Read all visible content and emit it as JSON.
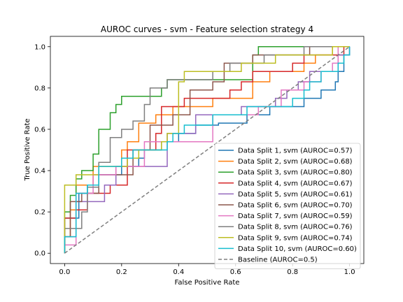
{
  "chart_data": {
    "type": "line",
    "title": "AUROC curves - svm - Feature selection strategy 4",
    "xlabel": "False Positive Rate",
    "ylabel": "True Positive Rate",
    "xlim": [
      -0.05,
      1.05
    ],
    "ylim": [
      -0.05,
      1.05
    ],
    "xticks": [
      0.0,
      0.2,
      0.4,
      0.6,
      0.8,
      1.0
    ],
    "yticks": [
      0.0,
      0.2,
      0.4,
      0.6,
      0.8,
      1.0
    ],
    "tick_labels_x": [
      "0.0",
      "0.2",
      "0.4",
      "0.6",
      "0.8",
      "1.0"
    ],
    "tick_labels_y": [
      "0.0",
      "0.2",
      "0.4",
      "0.6",
      "0.8",
      "1.0"
    ],
    "legend_position": "lower-right",
    "grid": false,
    "series": [
      {
        "name": "Data Split 1, svm (AUROC=0.57)",
        "color": "#1f77b4",
        "points": [
          [
            0,
            0
          ],
          [
            0,
            0.17
          ],
          [
            0.05,
            0.17
          ],
          [
            0.05,
            0.29
          ],
          [
            0.08,
            0.29
          ],
          [
            0.08,
            0.33
          ],
          [
            0.12,
            0.33
          ],
          [
            0.12,
            0.38
          ],
          [
            0.2,
            0.38
          ],
          [
            0.2,
            0.42
          ],
          [
            0.26,
            0.42
          ],
          [
            0.26,
            0.46
          ],
          [
            0.28,
            0.46
          ],
          [
            0.28,
            0.5
          ],
          [
            0.34,
            0.5
          ],
          [
            0.34,
            0.54
          ],
          [
            0.4,
            0.54
          ],
          [
            0.4,
            0.58
          ],
          [
            0.46,
            0.58
          ],
          [
            0.46,
            0.62
          ],
          [
            0.54,
            0.62
          ],
          [
            0.54,
            0.63
          ],
          [
            0.64,
            0.63
          ],
          [
            0.64,
            0.67
          ],
          [
            0.72,
            0.67
          ],
          [
            0.72,
            0.71
          ],
          [
            0.84,
            0.71
          ],
          [
            0.84,
            0.75
          ],
          [
            0.9,
            0.75
          ],
          [
            0.9,
            0.79
          ],
          [
            0.95,
            0.79
          ],
          [
            0.95,
            0.83
          ],
          [
            0.96,
            0.83
          ],
          [
            0.96,
            0.88
          ],
          [
            0.98,
            0.88
          ],
          [
            0.98,
            0.96
          ],
          [
            1,
            0.96
          ],
          [
            1,
            1
          ]
        ]
      },
      {
        "name": "Data Split 2, svm (AUROC=0.68)",
        "color": "#ff7f0e",
        "points": [
          [
            0,
            0
          ],
          [
            0,
            0.08
          ],
          [
            0.02,
            0.08
          ],
          [
            0.02,
            0.21
          ],
          [
            0.04,
            0.21
          ],
          [
            0.04,
            0.33
          ],
          [
            0.1,
            0.33
          ],
          [
            0.1,
            0.42
          ],
          [
            0.2,
            0.42
          ],
          [
            0.2,
            0.5
          ],
          [
            0.22,
            0.5
          ],
          [
            0.22,
            0.54
          ],
          [
            0.26,
            0.54
          ],
          [
            0.26,
            0.63
          ],
          [
            0.32,
            0.63
          ],
          [
            0.32,
            0.67
          ],
          [
            0.38,
            0.67
          ],
          [
            0.38,
            0.71
          ],
          [
            0.52,
            0.71
          ],
          [
            0.52,
            0.75
          ],
          [
            0.66,
            0.75
          ],
          [
            0.66,
            0.83
          ],
          [
            0.72,
            0.83
          ],
          [
            0.72,
            0.88
          ],
          [
            0.84,
            0.88
          ],
          [
            0.84,
            0.92
          ],
          [
            0.88,
            0.92
          ],
          [
            0.88,
            0.96
          ],
          [
            0.94,
            0.96
          ],
          [
            0.94,
            1
          ],
          [
            1,
            1
          ]
        ]
      },
      {
        "name": "Data Split 3, svm (AUROC=0.80)",
        "color": "#2ca02c",
        "points": [
          [
            0,
            0
          ],
          [
            0,
            0.2
          ],
          [
            0.02,
            0.2
          ],
          [
            0.02,
            0.28
          ],
          [
            0.04,
            0.28
          ],
          [
            0.04,
            0.36
          ],
          [
            0.06,
            0.36
          ],
          [
            0.06,
            0.4
          ],
          [
            0.1,
            0.4
          ],
          [
            0.1,
            0.48
          ],
          [
            0.12,
            0.48
          ],
          [
            0.12,
            0.6
          ],
          [
            0.16,
            0.6
          ],
          [
            0.16,
            0.68
          ],
          [
            0.18,
            0.68
          ],
          [
            0.18,
            0.72
          ],
          [
            0.2,
            0.72
          ],
          [
            0.2,
            0.76
          ],
          [
            0.34,
            0.76
          ],
          [
            0.34,
            0.8
          ],
          [
            0.36,
            0.8
          ],
          [
            0.36,
            0.84
          ],
          [
            0.66,
            0.84
          ],
          [
            0.66,
            0.96
          ],
          [
            0.68,
            0.96
          ],
          [
            0.68,
            1
          ],
          [
            1,
            1
          ]
        ]
      },
      {
        "name": "Data Split 4, svm (AUROC=0.67)",
        "color": "#d62728",
        "points": [
          [
            0,
            0
          ],
          [
            0,
            0.17
          ],
          [
            0.04,
            0.17
          ],
          [
            0.04,
            0.21
          ],
          [
            0.08,
            0.21
          ],
          [
            0.08,
            0.29
          ],
          [
            0.16,
            0.29
          ],
          [
            0.16,
            0.33
          ],
          [
            0.22,
            0.33
          ],
          [
            0.22,
            0.5
          ],
          [
            0.32,
            0.5
          ],
          [
            0.32,
            0.58
          ],
          [
            0.34,
            0.58
          ],
          [
            0.34,
            0.71
          ],
          [
            0.42,
            0.71
          ],
          [
            0.42,
            0.75
          ],
          [
            0.58,
            0.75
          ],
          [
            0.58,
            0.79
          ],
          [
            0.62,
            0.79
          ],
          [
            0.62,
            0.83
          ],
          [
            0.66,
            0.83
          ],
          [
            0.66,
            0.88
          ],
          [
            0.8,
            0.88
          ],
          [
            0.8,
            0.92
          ],
          [
            0.84,
            0.92
          ],
          [
            0.84,
            0.96
          ],
          [
            0.98,
            0.96
          ],
          [
            0.98,
            1
          ],
          [
            1,
            1
          ]
        ]
      },
      {
        "name": "Data Split 5, svm (AUROC=0.61)",
        "color": "#9467bd",
        "points": [
          [
            0,
            0
          ],
          [
            0,
            0.08
          ],
          [
            0.04,
            0.08
          ],
          [
            0.04,
            0.25
          ],
          [
            0.14,
            0.25
          ],
          [
            0.14,
            0.33
          ],
          [
            0.18,
            0.33
          ],
          [
            0.18,
            0.42
          ],
          [
            0.36,
            0.42
          ],
          [
            0.36,
            0.58
          ],
          [
            0.46,
            0.58
          ],
          [
            0.46,
            0.67
          ],
          [
            0.62,
            0.67
          ],
          [
            0.62,
            0.71
          ],
          [
            0.74,
            0.71
          ],
          [
            0.74,
            0.75
          ],
          [
            0.78,
            0.75
          ],
          [
            0.78,
            0.79
          ],
          [
            0.82,
            0.79
          ],
          [
            0.82,
            0.83
          ],
          [
            0.86,
            0.83
          ],
          [
            0.86,
            0.88
          ],
          [
            0.96,
            0.88
          ],
          [
            0.96,
            0.96
          ],
          [
            1,
            0.96
          ],
          [
            1,
            1
          ]
        ]
      },
      {
        "name": "Data Split 6, svm (AUROC=0.70)",
        "color": "#8c564b",
        "points": [
          [
            0,
            0
          ],
          [
            0,
            0.08
          ],
          [
            0.02,
            0.08
          ],
          [
            0.02,
            0.25
          ],
          [
            0.06,
            0.25
          ],
          [
            0.06,
            0.29
          ],
          [
            0.12,
            0.29
          ],
          [
            0.12,
            0.38
          ],
          [
            0.24,
            0.38
          ],
          [
            0.24,
            0.5
          ],
          [
            0.3,
            0.5
          ],
          [
            0.3,
            0.62
          ],
          [
            0.38,
            0.62
          ],
          [
            0.38,
            0.67
          ],
          [
            0.44,
            0.67
          ],
          [
            0.44,
            0.79
          ],
          [
            0.52,
            0.79
          ],
          [
            0.52,
            0.83
          ],
          [
            0.56,
            0.83
          ],
          [
            0.56,
            0.92
          ],
          [
            0.66,
            0.92
          ],
          [
            0.66,
            0.96
          ],
          [
            0.86,
            0.96
          ],
          [
            0.86,
            1
          ],
          [
            1,
            1
          ]
        ]
      },
      {
        "name": "Data Split 7, svm (AUROC=0.59)",
        "color": "#e377c2",
        "points": [
          [
            0,
            0
          ],
          [
            0,
            0.04
          ],
          [
            0.04,
            0.04
          ],
          [
            0.04,
            0.29
          ],
          [
            0.1,
            0.29
          ],
          [
            0.1,
            0.38
          ],
          [
            0.18,
            0.38
          ],
          [
            0.18,
            0.42
          ],
          [
            0.28,
            0.42
          ],
          [
            0.28,
            0.54
          ],
          [
            0.52,
            0.54
          ],
          [
            0.52,
            0.67
          ],
          [
            0.68,
            0.67
          ],
          [
            0.68,
            0.71
          ],
          [
            0.76,
            0.71
          ],
          [
            0.76,
            0.79
          ],
          [
            0.84,
            0.79
          ],
          [
            0.84,
            0.83
          ],
          [
            0.9,
            0.83
          ],
          [
            0.9,
            0.88
          ],
          [
            0.94,
            0.88
          ],
          [
            0.94,
            0.92
          ],
          [
            0.96,
            0.92
          ],
          [
            0.96,
            1
          ],
          [
            1,
            1
          ]
        ]
      },
      {
        "name": "Data Split 8, svm (AUROC=0.76)",
        "color": "#7f7f7f",
        "points": [
          [
            0,
            0
          ],
          [
            0,
            0.12
          ],
          [
            0.06,
            0.12
          ],
          [
            0.06,
            0.2
          ],
          [
            0.08,
            0.2
          ],
          [
            0.08,
            0.32
          ],
          [
            0.12,
            0.32
          ],
          [
            0.12,
            0.44
          ],
          [
            0.16,
            0.44
          ],
          [
            0.16,
            0.56
          ],
          [
            0.2,
            0.56
          ],
          [
            0.2,
            0.6
          ],
          [
            0.24,
            0.6
          ],
          [
            0.24,
            0.64
          ],
          [
            0.28,
            0.64
          ],
          [
            0.28,
            0.72
          ],
          [
            0.3,
            0.72
          ],
          [
            0.3,
            0.8
          ],
          [
            0.36,
            0.8
          ],
          [
            0.36,
            0.84
          ],
          [
            0.52,
            0.84
          ],
          [
            0.52,
            0.88
          ],
          [
            0.58,
            0.88
          ],
          [
            0.58,
            0.92
          ],
          [
            0.7,
            0.92
          ],
          [
            0.7,
            0.96
          ],
          [
            0.84,
            0.96
          ],
          [
            0.84,
            1
          ],
          [
            1,
            1
          ]
        ]
      },
      {
        "name": "Data Split 9, svm (AUROC=0.74)",
        "color": "#bcbd22",
        "points": [
          [
            0,
            0
          ],
          [
            0,
            0.33
          ],
          [
            0.04,
            0.33
          ],
          [
            0.04,
            0.38
          ],
          [
            0.12,
            0.38
          ],
          [
            0.12,
            0.42
          ],
          [
            0.22,
            0.42
          ],
          [
            0.22,
            0.46
          ],
          [
            0.26,
            0.46
          ],
          [
            0.26,
            0.5
          ],
          [
            0.34,
            0.5
          ],
          [
            0.34,
            0.54
          ],
          [
            0.36,
            0.54
          ],
          [
            0.36,
            0.58
          ],
          [
            0.4,
            0.58
          ],
          [
            0.4,
            0.83
          ],
          [
            0.42,
            0.83
          ],
          [
            0.42,
            0.88
          ],
          [
            0.62,
            0.88
          ],
          [
            0.62,
            0.92
          ],
          [
            0.74,
            0.92
          ],
          [
            0.74,
            0.96
          ],
          [
            0.94,
            0.96
          ],
          [
            0.94,
            1
          ],
          [
            1,
            1
          ]
        ]
      },
      {
        "name": "Data Split 10, svm (AUROC=0.60)",
        "color": "#17becf",
        "points": [
          [
            0,
            0
          ],
          [
            0,
            0.08
          ],
          [
            0.04,
            0.08
          ],
          [
            0.04,
            0.29
          ],
          [
            0.08,
            0.29
          ],
          [
            0.08,
            0.33
          ],
          [
            0.12,
            0.33
          ],
          [
            0.12,
            0.42
          ],
          [
            0.2,
            0.42
          ],
          [
            0.2,
            0.46
          ],
          [
            0.24,
            0.46
          ],
          [
            0.24,
            0.5
          ],
          [
            0.36,
            0.5
          ],
          [
            0.36,
            0.54
          ],
          [
            0.38,
            0.54
          ],
          [
            0.38,
            0.58
          ],
          [
            0.42,
            0.58
          ],
          [
            0.42,
            0.62
          ],
          [
            0.52,
            0.62
          ],
          [
            0.52,
            0.67
          ],
          [
            0.64,
            0.67
          ],
          [
            0.64,
            0.71
          ],
          [
            0.8,
            0.71
          ],
          [
            0.8,
            0.75
          ],
          [
            0.84,
            0.75
          ],
          [
            0.84,
            0.79
          ],
          [
            0.86,
            0.79
          ],
          [
            0.86,
            0.83
          ],
          [
            0.9,
            0.83
          ],
          [
            0.9,
            0.88
          ],
          [
            0.96,
            0.88
          ],
          [
            0.96,
            0.92
          ],
          [
            0.98,
            0.92
          ],
          [
            0.98,
            0.96
          ],
          [
            1,
            0.96
          ],
          [
            1,
            1
          ]
        ]
      },
      {
        "name": "Baseline (AUROC=0.5)",
        "color": "#7f7f7f",
        "dashed": true,
        "points": [
          [
            0,
            0
          ],
          [
            1,
            1
          ]
        ]
      }
    ]
  }
}
